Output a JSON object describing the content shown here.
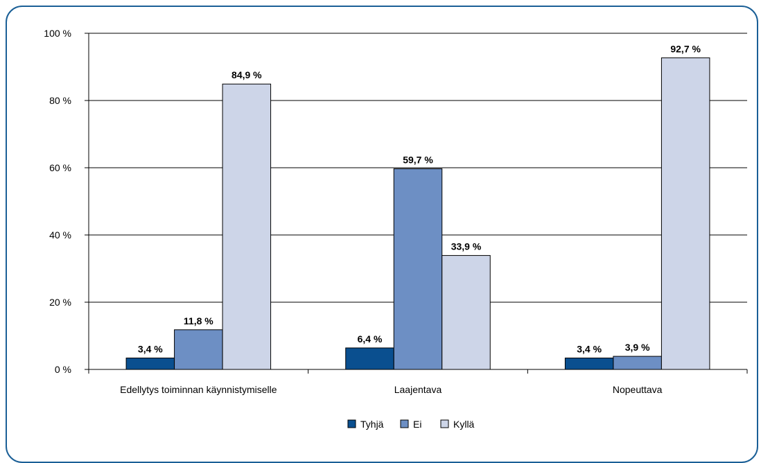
{
  "chart_data": {
    "type": "bar",
    "categories": [
      "Edellytys toiminnan käynnistymiselle",
      "Laajentava",
      "Nopeuttava"
    ],
    "series": [
      {
        "name": "Tyhjä",
        "values": [
          3.4,
          6.4,
          3.4
        ],
        "labels": [
          "3,4 %",
          "6,4 %",
          "3,4 %"
        ],
        "color": "#0a4f8f"
      },
      {
        "name": "Ei",
        "values": [
          11.8,
          59.7,
          3.9
        ],
        "labels": [
          "11,8 %",
          "59,7 %",
          "3,9 %"
        ],
        "color": "#6d8fc4"
      },
      {
        "name": "Kyllä",
        "values": [
          84.9,
          33.9,
          92.7
        ],
        "labels": [
          "84,9 %",
          "33,9 %",
          "92,7 %"
        ],
        "color": "#cdd5e8"
      }
    ],
    "ylim": [
      0,
      100
    ],
    "yticks": [
      0,
      20,
      40,
      60,
      80,
      100
    ],
    "ytick_labels": [
      "0 %",
      "20 %",
      "40 %",
      "60 %",
      "80 %",
      "100 %"
    ],
    "grid": true,
    "legend_position": "bottom-center",
    "frame_color": "#1a5f96"
  }
}
